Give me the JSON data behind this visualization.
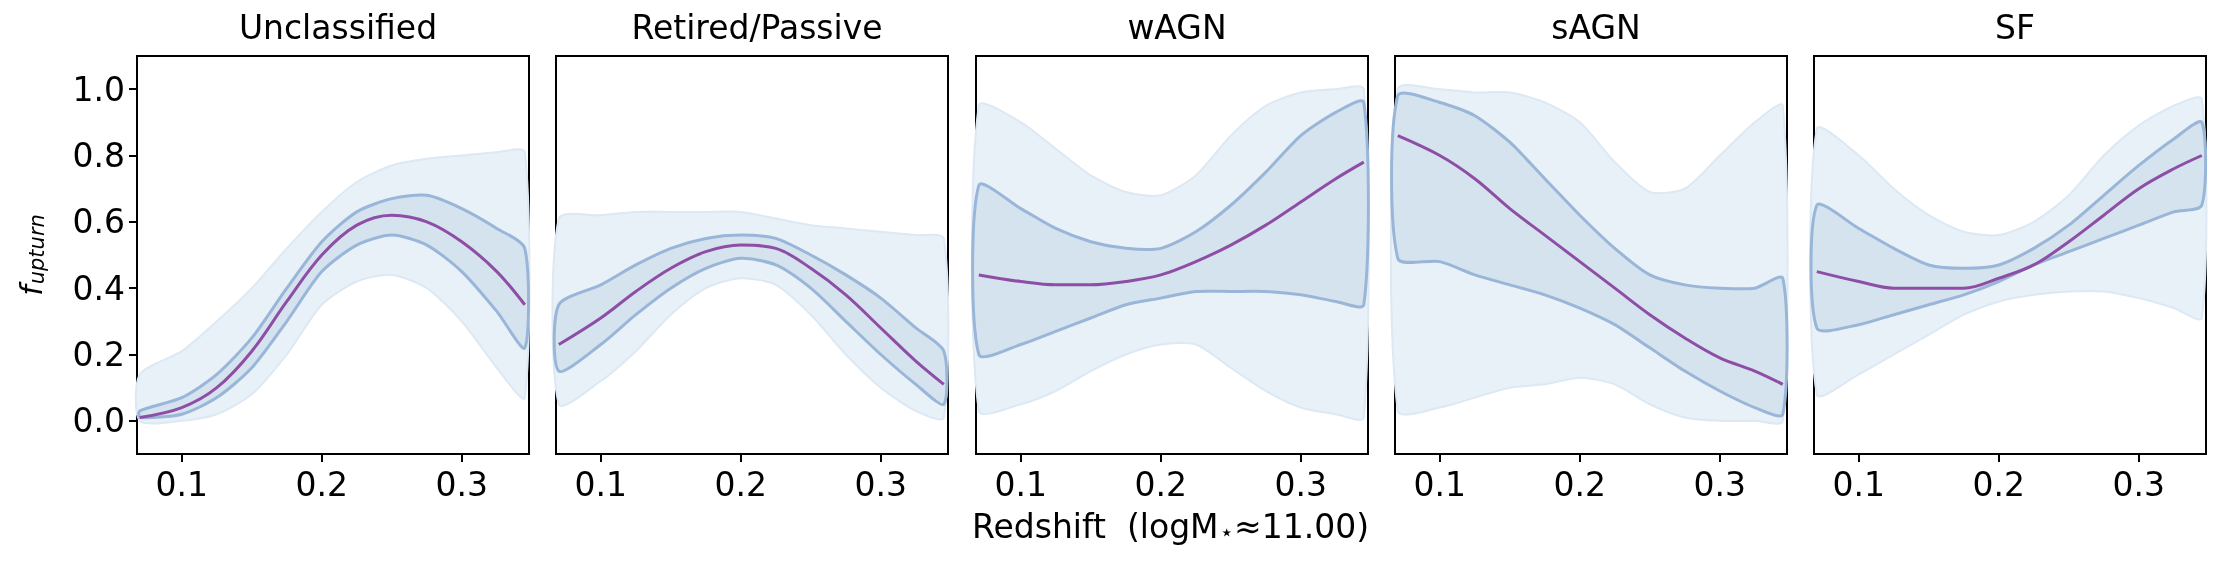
{
  "chart_data": [
    {
      "type": "line",
      "title": "Unclassified",
      "ylabel": "f$_{upturn}$",
      "x": [
        0.07,
        0.1,
        0.125,
        0.15,
        0.175,
        0.2,
        0.225,
        0.25,
        0.275,
        0.3,
        0.325,
        0.345
      ],
      "xlim": [
        0.068,
        0.348
      ],
      "xticks": [
        0.1,
        0.2,
        0.3
      ],
      "ylim": [
        -0.1,
        1.1
      ],
      "yticks": [
        {
          "value": 0,
          "label": "0.0"
        },
        0.2,
        0.4,
        0.6,
        0.8,
        {
          "value": 1,
          "label": "1.0"
        }
      ],
      "series": [
        {
          "color": "#e9f1f8",
          "values": [
            null,
            null,
            null,
            null,
            null,
            null,
            null,
            null,
            null,
            null,
            null,
            null
          ],
          "lower": [
            0,
            0,
            0.02,
            0.08,
            0.2,
            0.35,
            0.42,
            0.44,
            0.4,
            0.3,
            0.16,
            0.07
          ],
          "upper": [
            0.14,
            0.21,
            0.3,
            0.4,
            0.52,
            0.63,
            0.72,
            0.77,
            0.79,
            0.8,
            0.81,
            0.81
          ]
        },
        {
          "color": "#8e4ea6",
          "values": [
            0.01,
            0.04,
            0.1,
            0.21,
            0.36,
            0.5,
            0.59,
            0.62,
            0.6,
            0.54,
            0.45,
            0.35
          ],
          "lower": [
            0.01,
            0.02,
            0.07,
            0.16,
            0.3,
            0.45,
            0.53,
            0.56,
            0.53,
            0.45,
            0.33,
            0.22
          ],
          "upper": [
            0.03,
            0.07,
            0.14,
            0.25,
            0.4,
            0.54,
            0.63,
            0.67,
            0.68,
            0.64,
            0.58,
            0.52
          ]
        }
      ]
    },
    {
      "type": "line",
      "title": "Retired/Passive",
      "x": [
        0.07,
        0.1,
        0.125,
        0.15,
        0.175,
        0.2,
        0.225,
        0.25,
        0.275,
        0.3,
        0.325,
        0.345
      ],
      "xlim": [
        0.068,
        0.348
      ],
      "xticks": [
        0.1,
        0.2,
        0.3
      ],
      "ylim": [
        -0.1,
        1.1
      ],
      "tick_labels": "x",
      "series": [
        {
          "color": "#e9f1f8",
          "values": [
            null,
            null,
            null,
            null,
            null,
            null,
            null,
            null,
            null,
            null,
            null,
            null
          ],
          "lower": [
            0.05,
            0.12,
            0.21,
            0.32,
            0.4,
            0.43,
            0.41,
            0.32,
            0.2,
            0.1,
            0.03,
            0.01
          ],
          "upper": [
            0.61,
            0.62,
            0.63,
            0.63,
            0.63,
            0.63,
            0.61,
            0.59,
            0.58,
            0.57,
            0.56,
            0.55
          ]
        },
        {
          "color": "#8e4ea6",
          "values": [
            0.23,
            0.31,
            0.39,
            0.46,
            0.51,
            0.53,
            0.52,
            0.46,
            0.38,
            0.28,
            0.18,
            0.11
          ],
          "lower": [
            0.15,
            0.23,
            0.32,
            0.4,
            0.46,
            0.49,
            0.47,
            0.4,
            0.3,
            0.2,
            0.11,
            0.05
          ],
          "upper": [
            0.35,
            0.41,
            0.47,
            0.52,
            0.55,
            0.56,
            0.55,
            0.5,
            0.44,
            0.37,
            0.28,
            0.21
          ]
        }
      ]
    },
    {
      "type": "line",
      "title": "wAGN",
      "xlabel": "Redshift  (logM$_{⋆}$≈11.00)",
      "x": [
        0.07,
        0.1,
        0.125,
        0.15,
        0.175,
        0.2,
        0.225,
        0.25,
        0.275,
        0.3,
        0.325,
        0.345
      ],
      "xlim": [
        0.068,
        0.348
      ],
      "xticks": [
        0.1,
        0.2,
        0.3
      ],
      "ylim": [
        -0.1,
        1.1
      ],
      "tick_labels": "x",
      "series": [
        {
          "color": "#e9f1f8",
          "values": [
            null,
            null,
            null,
            null,
            null,
            null,
            null,
            null,
            null,
            null,
            null,
            null
          ],
          "lower": [
            0.03,
            0.05,
            0.09,
            0.15,
            0.2,
            0.23,
            0.23,
            0.16,
            0.09,
            0.04,
            0.02,
            0.01
          ],
          "upper": [
            0.95,
            0.9,
            0.82,
            0.74,
            0.69,
            0.68,
            0.74,
            0.86,
            0.95,
            0.99,
            1,
            1
          ]
        },
        {
          "color": "#8e4ea6",
          "values": [
            0.44,
            0.42,
            0.41,
            0.41,
            0.42,
            0.44,
            0.48,
            0.53,
            0.59,
            0.66,
            0.73,
            0.78
          ],
          "lower": [
            0.2,
            0.23,
            0.27,
            0.31,
            0.35,
            0.37,
            0.39,
            0.39,
            0.39,
            0.38,
            0.36,
            0.35
          ],
          "upper": [
            0.71,
            0.64,
            0.58,
            0.54,
            0.52,
            0.52,
            0.57,
            0.65,
            0.75,
            0.86,
            0.93,
            0.96
          ]
        }
      ]
    },
    {
      "type": "line",
      "title": "sAGN",
      "x": [
        0.07,
        0.1,
        0.125,
        0.15,
        0.175,
        0.2,
        0.225,
        0.25,
        0.275,
        0.3,
        0.325,
        0.345
      ],
      "xlim": [
        0.068,
        0.348
      ],
      "xticks": [
        0.1,
        0.2,
        0.3
      ],
      "ylim": [
        -0.1,
        1.1
      ],
      "tick_labels": "x",
      "series": [
        {
          "color": "#e9f1f8",
          "values": [
            null,
            null,
            null,
            null,
            null,
            null,
            null,
            null,
            null,
            null,
            null,
            null
          ],
          "lower": [
            0.03,
            0.04,
            0.07,
            0.1,
            0.11,
            0.13,
            0.11,
            0.05,
            0.01,
            0,
            0,
            0
          ],
          "upper": [
            1,
            1,
            0.99,
            0.99,
            0.96,
            0.9,
            0.78,
            0.69,
            0.7,
            0.8,
            0.9,
            0.95
          ]
        },
        {
          "color": "#8e4ea6",
          "values": [
            0.86,
            0.8,
            0.73,
            0.64,
            0.56,
            0.48,
            0.4,
            0.32,
            0.25,
            0.19,
            0.15,
            0.11
          ],
          "lower": [
            0.49,
            0.48,
            0.44,
            0.41,
            0.38,
            0.34,
            0.29,
            0.22,
            0.15,
            0.09,
            0.04,
            0.02
          ],
          "upper": [
            0.98,
            0.96,
            0.92,
            0.84,
            0.73,
            0.62,
            0.52,
            0.44,
            0.41,
            0.4,
            0.4,
            0.43
          ]
        }
      ]
    },
    {
      "type": "line",
      "title": "SF",
      "x": [
        0.07,
        0.1,
        0.125,
        0.15,
        0.175,
        0.2,
        0.225,
        0.25,
        0.275,
        0.3,
        0.325,
        0.345
      ],
      "xlim": [
        0.068,
        0.348
      ],
      "xticks": [
        0.1,
        0.2,
        0.3
      ],
      "ylim": [
        -0.1,
        1.1
      ],
      "tick_labels": "x",
      "series": [
        {
          "color": "#e9f1f8",
          "values": [
            null,
            null,
            null,
            null,
            null,
            null,
            null,
            null,
            null,
            null,
            null,
            null
          ],
          "lower": [
            0.08,
            0.14,
            0.2,
            0.26,
            0.32,
            0.36,
            0.38,
            0.39,
            0.39,
            0.37,
            0.34,
            0.31
          ],
          "upper": [
            0.88,
            0.8,
            0.7,
            0.62,
            0.57,
            0.56,
            0.6,
            0.68,
            0.8,
            0.89,
            0.95,
            0.97
          ]
        },
        {
          "color": "#8e4ea6",
          "values": [
            0.45,
            0.42,
            0.4,
            0.4,
            0.4,
            0.43,
            0.47,
            0.54,
            0.62,
            0.7,
            0.76,
            0.8
          ],
          "lower": [
            0.28,
            0.29,
            0.32,
            0.35,
            0.38,
            0.42,
            0.47,
            0.51,
            0.55,
            0.59,
            0.63,
            0.65
          ],
          "upper": [
            0.65,
            0.58,
            0.52,
            0.47,
            0.46,
            0.47,
            0.52,
            0.59,
            0.68,
            0.77,
            0.85,
            0.9
          ]
        }
      ]
    }
  ]
}
